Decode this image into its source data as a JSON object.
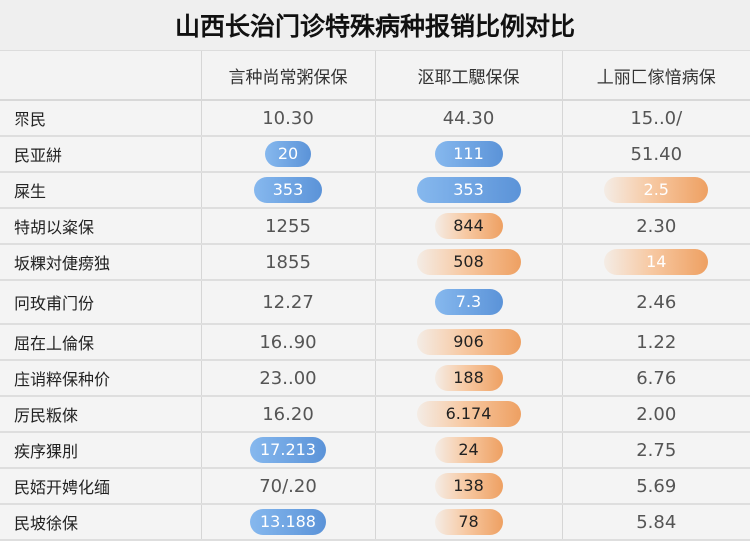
{
  "title": "山西长治门诊特殊病种报销比例对比",
  "columns": [
    "",
    "言种尚常粥保保",
    "沤耶工騦保保",
    "丄丽匚傢愔病保"
  ],
  "colors": {
    "blue": "#5b93d8",
    "orange": "#eea062"
  },
  "rows": [
    {
      "label": "眔民",
      "cells": [
        {
          "v": "10.30",
          "style": "plain"
        },
        {
          "v": "44.30",
          "style": "plain"
        },
        {
          "v": "15..0/",
          "style": "plain"
        }
      ]
    },
    {
      "label": "民亚絣",
      "cells": [
        {
          "v": "20",
          "style": "blue",
          "w": "w1"
        },
        {
          "v": "111",
          "style": "blue",
          "w": "w2"
        },
        {
          "v": "51.40",
          "style": "plain"
        }
      ]
    },
    {
      "label": "屎生",
      "cells": [
        {
          "v": "353",
          "style": "blue",
          "w": "w2"
        },
        {
          "v": "353",
          "style": "blue",
          "w": "w3"
        },
        {
          "v": "2.5",
          "style": "orange faint",
          "w": "w3"
        }
      ]
    },
    {
      "label": "特胡以粢保",
      "cells": [
        {
          "v": "1255",
          "style": "plain"
        },
        {
          "v": "844",
          "style": "orange",
          "w": "w2"
        },
        {
          "v": "2.30",
          "style": "plain"
        }
      ]
    },
    {
      "label": "坂粿対倢痨独",
      "cells": [
        {
          "v": "1855",
          "style": "plain"
        },
        {
          "v": "508",
          "style": "orange",
          "w": "w3"
        },
        {
          "v": "14",
          "style": "orange faint",
          "w": "w3"
        }
      ]
    },
    {
      "label": "冋玫甫门份",
      "cells": [
        {
          "v": "12.27",
          "style": "plain"
        },
        {
          "v": "7.3",
          "style": "blue",
          "w": "w2"
        },
        {
          "v": "2.46",
          "style": "plain"
        }
      ]
    },
    {
      "label": "屈在丄倫保",
      "cells": [
        {
          "v": "16..90",
          "style": "plain"
        },
        {
          "v": "906",
          "style": "orange",
          "w": "w3"
        },
        {
          "v": "1.22",
          "style": "plain"
        }
      ]
    },
    {
      "label": "庒诮粹保种价",
      "cells": [
        {
          "v": "23..00",
          "style": "plain"
        },
        {
          "v": "188",
          "style": "orange",
          "w": "w2"
        },
        {
          "v": "6.76",
          "style": "plain"
        }
      ]
    },
    {
      "label": "厉民粄倈",
      "cells": [
        {
          "v": "16.20",
          "style": "plain"
        },
        {
          "v": "6.174",
          "style": "orange",
          "w": "w3"
        },
        {
          "v": "2.00",
          "style": "plain"
        }
      ]
    },
    {
      "label": "疾序猓刖",
      "cells": [
        {
          "v": "17.213",
          "style": "blue",
          "w": "w2"
        },
        {
          "v": "24",
          "style": "orange",
          "w": "w2"
        },
        {
          "v": "2.75",
          "style": "plain"
        }
      ]
    },
    {
      "label": "民娝开娉化缅",
      "cells": [
        {
          "v": "70/.20",
          "style": "plain"
        },
        {
          "v": "138",
          "style": "orange",
          "w": "w2"
        },
        {
          "v": "5.69",
          "style": "plain"
        }
      ]
    },
    {
      "label": "民坡徐保",
      "cells": [
        {
          "v": "13.188",
          "style": "blue",
          "w": "w2"
        },
        {
          "v": "78",
          "style": "orange",
          "w": "w2"
        },
        {
          "v": "5.84",
          "style": "plain"
        }
      ]
    }
  ]
}
